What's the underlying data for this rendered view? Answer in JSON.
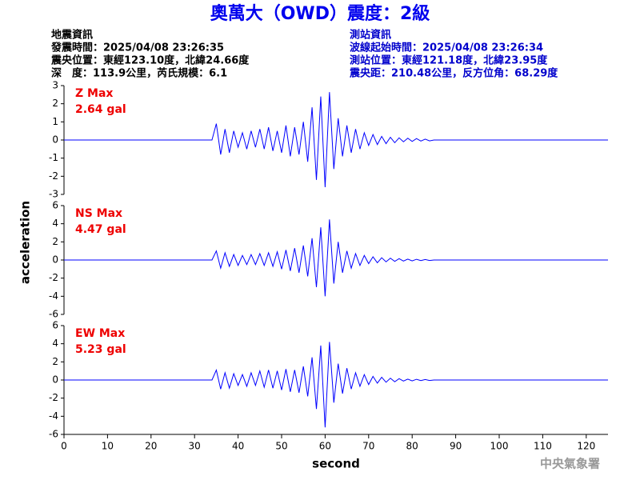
{
  "event_info": [
    "地震資訊",
    "發震時間：2025/04/08 23:26:35",
    "震央位置：東經123.10度，北緯24.66度",
    "深　度：113.9公里，芮氏規模：6.1"
  ],
  "station_info": [
    "測站資訊",
    "波線起始時間：2025/04/08 23:26:34",
    "測站位置：東經121.18度，北緯23.95度",
    "震央距：210.48公里，反方位角：68.29度"
  ],
  "watermark": "中央氣象署",
  "chart_data": [
    {
      "type": "line",
      "title": "奧萬大（OWD）震度：2級",
      "annotations": [
        "Z Max",
        "2.64 gal"
      ],
      "color": "#0000ff",
      "x": [
        0,
        34,
        35,
        36,
        37,
        38,
        39,
        40,
        41,
        42,
        43,
        44,
        45,
        46,
        47,
        48,
        49,
        50,
        51,
        52,
        53,
        54,
        55,
        56,
        57,
        58,
        59,
        60,
        61,
        62,
        63,
        64,
        65,
        66,
        67,
        68,
        69,
        70,
        71,
        72,
        73,
        74,
        75,
        76,
        77,
        78,
        79,
        80,
        81,
        82,
        83,
        84,
        85,
        125
      ],
      "values": [
        0,
        0,
        0.9,
        -0.8,
        0.6,
        -0.7,
        0.5,
        -0.4,
        0.4,
        -0.5,
        0.5,
        -0.4,
        0.6,
        -0.5,
        0.7,
        -0.6,
        0.5,
        -0.7,
        0.8,
        -0.9,
        0.7,
        -0.8,
        1.0,
        -1.2,
        1.8,
        -2.2,
        2.4,
        -2.6,
        2.64,
        -1.6,
        1.2,
        -0.9,
        0.8,
        -0.7,
        0.6,
        -0.5,
        0.4,
        -0.3,
        0.3,
        -0.25,
        0.2,
        -0.2,
        0.15,
        -0.15,
        0.12,
        -0.1,
        0.1,
        -0.08,
        0.08,
        -0.06,
        0.05,
        -0.05,
        0,
        0
      ],
      "xlim": [
        0,
        125
      ],
      "ylim": [
        -3,
        3
      ],
      "yticks": [
        -3,
        -2,
        -1,
        0,
        1,
        2,
        3
      ]
    },
    {
      "type": "line",
      "ylabel": "acceleration",
      "annotations": [
        "NS Max",
        "4.47 gal"
      ],
      "color": "#0000ff",
      "x": [
        0,
        34,
        35,
        36,
        37,
        38,
        39,
        40,
        41,
        42,
        43,
        44,
        45,
        46,
        47,
        48,
        49,
        50,
        51,
        52,
        53,
        54,
        55,
        56,
        57,
        58,
        59,
        60,
        61,
        62,
        63,
        64,
        65,
        66,
        67,
        68,
        69,
        70,
        71,
        72,
        73,
        74,
        75,
        76,
        77,
        78,
        79,
        80,
        81,
        82,
        83,
        84,
        85,
        125
      ],
      "values": [
        0,
        0,
        1.0,
        -0.9,
        0.8,
        -0.7,
        0.6,
        -0.6,
        0.5,
        -0.5,
        0.6,
        -0.5,
        0.7,
        -0.6,
        0.8,
        -0.7,
        0.9,
        -1.0,
        1.1,
        -1.2,
        1.3,
        -1.4,
        1.6,
        -1.8,
        2.4,
        -3.0,
        3.6,
        -4.0,
        4.47,
        -2.6,
        2.0,
        -1.4,
        1.0,
        -0.9,
        0.7,
        -0.6,
        0.5,
        -0.4,
        0.35,
        -0.3,
        0.25,
        -0.2,
        0.2,
        -0.15,
        0.15,
        -0.12,
        0.1,
        -0.1,
        0.08,
        -0.06,
        0.05,
        -0.05,
        0,
        0
      ],
      "xlim": [
        0,
        125
      ],
      "ylim": [
        -6,
        6
      ],
      "yticks": [
        -6,
        -4,
        -2,
        0,
        2,
        4,
        6
      ]
    },
    {
      "type": "line",
      "xlabel": "second",
      "annotations": [
        "EW Max",
        "5.23 gal"
      ],
      "color": "#0000ff",
      "x": [
        0,
        34,
        35,
        36,
        37,
        38,
        39,
        40,
        41,
        42,
        43,
        44,
        45,
        46,
        47,
        48,
        49,
        50,
        51,
        52,
        53,
        54,
        55,
        56,
        57,
        58,
        59,
        60,
        61,
        62,
        63,
        64,
        65,
        66,
        67,
        68,
        69,
        70,
        71,
        72,
        73,
        74,
        75,
        76,
        77,
        78,
        79,
        80,
        81,
        82,
        83,
        84,
        85,
        125
      ],
      "values": [
        0,
        0,
        1.1,
        -1.0,
        0.8,
        -0.9,
        0.7,
        -0.6,
        0.6,
        -0.7,
        0.8,
        -0.6,
        1.0,
        -0.8,
        1.1,
        -0.9,
        1.0,
        -1.1,
        1.2,
        -1.3,
        1.1,
        -1.4,
        1.5,
        -1.8,
        2.5,
        -3.2,
        3.8,
        -5.23,
        4.2,
        -2.5,
        1.8,
        -1.5,
        1.3,
        -1.0,
        0.8,
        -0.7,
        0.6,
        -0.5,
        0.4,
        -0.35,
        0.3,
        -0.25,
        0.2,
        -0.2,
        0.15,
        -0.12,
        0.1,
        -0.1,
        0.08,
        -0.06,
        0.05,
        -0.05,
        0,
        0
      ],
      "xlim": [
        0,
        125
      ],
      "ylim": [
        -6,
        6
      ],
      "yticks": [
        -6,
        -4,
        -2,
        0,
        2,
        4,
        6
      ],
      "xticks": [
        0,
        10,
        20,
        30,
        40,
        50,
        60,
        70,
        80,
        90,
        100,
        110,
        120
      ]
    }
  ]
}
